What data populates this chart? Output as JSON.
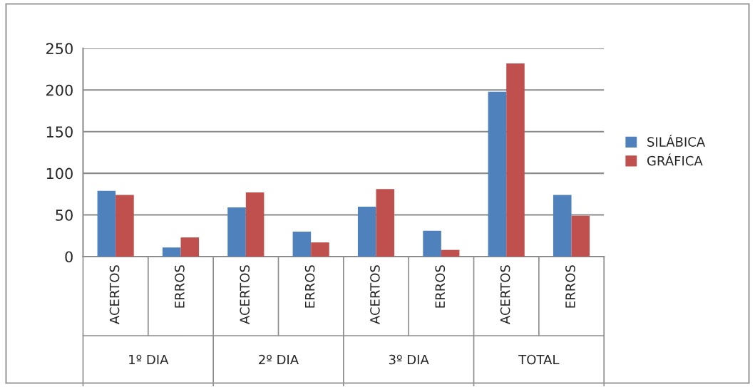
{
  "chart_data": {
    "type": "bar",
    "categories": [
      "ACERTOS",
      "ERROS",
      "ACERTOS",
      "ERROS",
      "ACERTOS",
      "ERROS",
      "ACERTOS",
      "ERROS"
    ],
    "series": [
      {
        "name": "SILÁBICA",
        "color": "#4f81bd",
        "values": [
          79,
          11,
          59,
          30,
          60,
          31,
          198,
          74
        ]
      },
      {
        "name": "GRÁFICA",
        "color": "#c0504d",
        "values": [
          74,
          23,
          77,
          17,
          81,
          8,
          232,
          49
        ]
      }
    ],
    "annotations": [
      "1º DIA",
      "2º DIA",
      "3º DIA",
      "TOTAL"
    ],
    "ylim": [
      0,
      250
    ],
    "yticks": [
      0,
      50,
      100,
      150,
      200,
      250
    ],
    "grid": "y",
    "legend": "right"
  }
}
